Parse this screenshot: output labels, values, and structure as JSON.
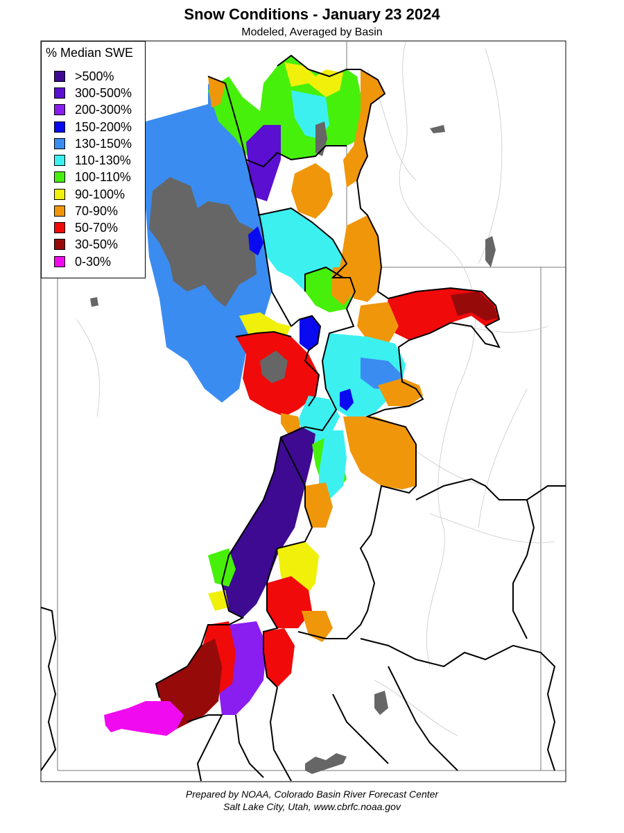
{
  "title": "Snow Conditions - January 23 2024",
  "subtitle": "Modeled, Averaged by Basin",
  "legend": {
    "title": "% Median SWE",
    "items": [
      {
        "label": ">500%",
        "color": "#3d0a91"
      },
      {
        "label": "300-500%",
        "color": "#5b0fd0"
      },
      {
        "label": "200-300%",
        "color": "#8a1ef0"
      },
      {
        "label": "150-200%",
        "color": "#0a0af0"
      },
      {
        "label": "130-150%",
        "color": "#3a8cf0"
      },
      {
        "label": "110-130%",
        "color": "#3cf0f0"
      },
      {
        "label": "100-110%",
        "color": "#46f00a"
      },
      {
        "label": "90-100%",
        "color": "#f0f00a"
      },
      {
        "label": "70-90%",
        "color": "#f0960a"
      },
      {
        "label": "50-70%",
        "color": "#f00a0a"
      },
      {
        "label": "30-50%",
        "color": "#960a0a"
      },
      {
        "label": "0-30%",
        "color": "#f00af0"
      }
    ]
  },
  "lake_color": "#666666",
  "footer": {
    "line1": "Prepared by NOAA, Colorado Basin River Forecast Center",
    "line2": "Salt Lake City, Utah, www.cbrfc.noaa.gov"
  }
}
